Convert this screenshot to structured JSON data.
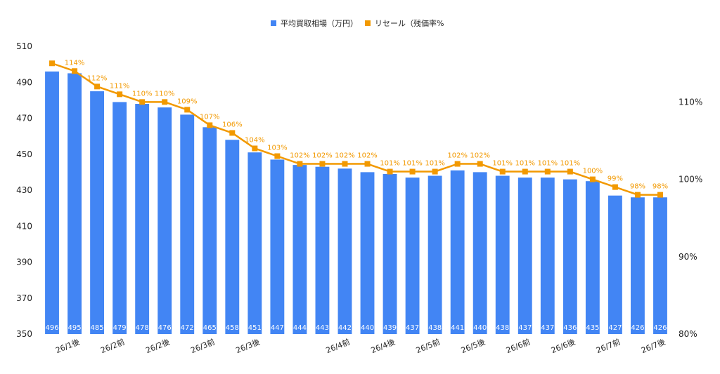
{
  "chart_data": {
    "type": "bar",
    "categories": [
      "",
      "26/1後",
      "",
      "26/2前",
      "",
      "26/2後",
      "",
      "26/3前",
      "",
      "26/3後",
      "",
      "",
      "",
      "26/4前",
      "",
      "26/4後",
      "",
      "26/5前",
      "",
      "26/5後",
      "",
      "26/6前",
      "",
      "26/6後",
      "",
      "26/7前",
      "",
      "26/7後"
    ],
    "series": [
      {
        "name": "平均買取相場（万円）",
        "kind": "bar",
        "axis": "left",
        "color": "#4285f4",
        "values": [
          496,
          495,
          485,
          479,
          478,
          476,
          472,
          465,
          458,
          451,
          447,
          444,
          443,
          442,
          440,
          439,
          437,
          438,
          441,
          440,
          438,
          437,
          437,
          436,
          435,
          427,
          426,
          426
        ],
        "labels": [
          "496",
          "495",
          "485",
          "479",
          "478",
          "476",
          "472",
          "465",
          "458",
          "451",
          "447",
          "444",
          "443",
          "442",
          "440",
          "439",
          "437",
          "438",
          "441",
          "440",
          "438",
          "437",
          "437",
          "436",
          "435",
          "427",
          "426",
          "426"
        ]
      },
      {
        "name": "リセール（残価率%",
        "kind": "line",
        "axis": "right",
        "color": "#f29900",
        "values": [
          115,
          114,
          112,
          111,
          110,
          110,
          109,
          107,
          106,
          104,
          103,
          102,
          102,
          102,
          102,
          101,
          101,
          101,
          102,
          102,
          101,
          101,
          101,
          101,
          100,
          99,
          98,
          98
        ],
        "labels": [
          "",
          "114%",
          "112%",
          "111%",
          "110%",
          "110%",
          "109%",
          "107%",
          "106%",
          "104%",
          "103%",
          "102%",
          "102%",
          "102%",
          "102%",
          "101%",
          "101%",
          "101%",
          "102%",
          "102%",
          "101%",
          "101%",
          "101%",
          "101%",
          "100%",
          "99%",
          "98%",
          "98%"
        ]
      }
    ],
    "left_axis": {
      "ylim": [
        350,
        510
      ],
      "ticks": [
        "350",
        "370",
        "390",
        "410",
        "430",
        "450",
        "470",
        "490",
        "510"
      ]
    },
    "right_axis": {
      "ylim": [
        80,
        117.2
      ],
      "ticks": [
        "80%",
        "90%",
        "100%",
        "110%"
      ]
    },
    "grid": false,
    "legend_position": "top-center"
  }
}
